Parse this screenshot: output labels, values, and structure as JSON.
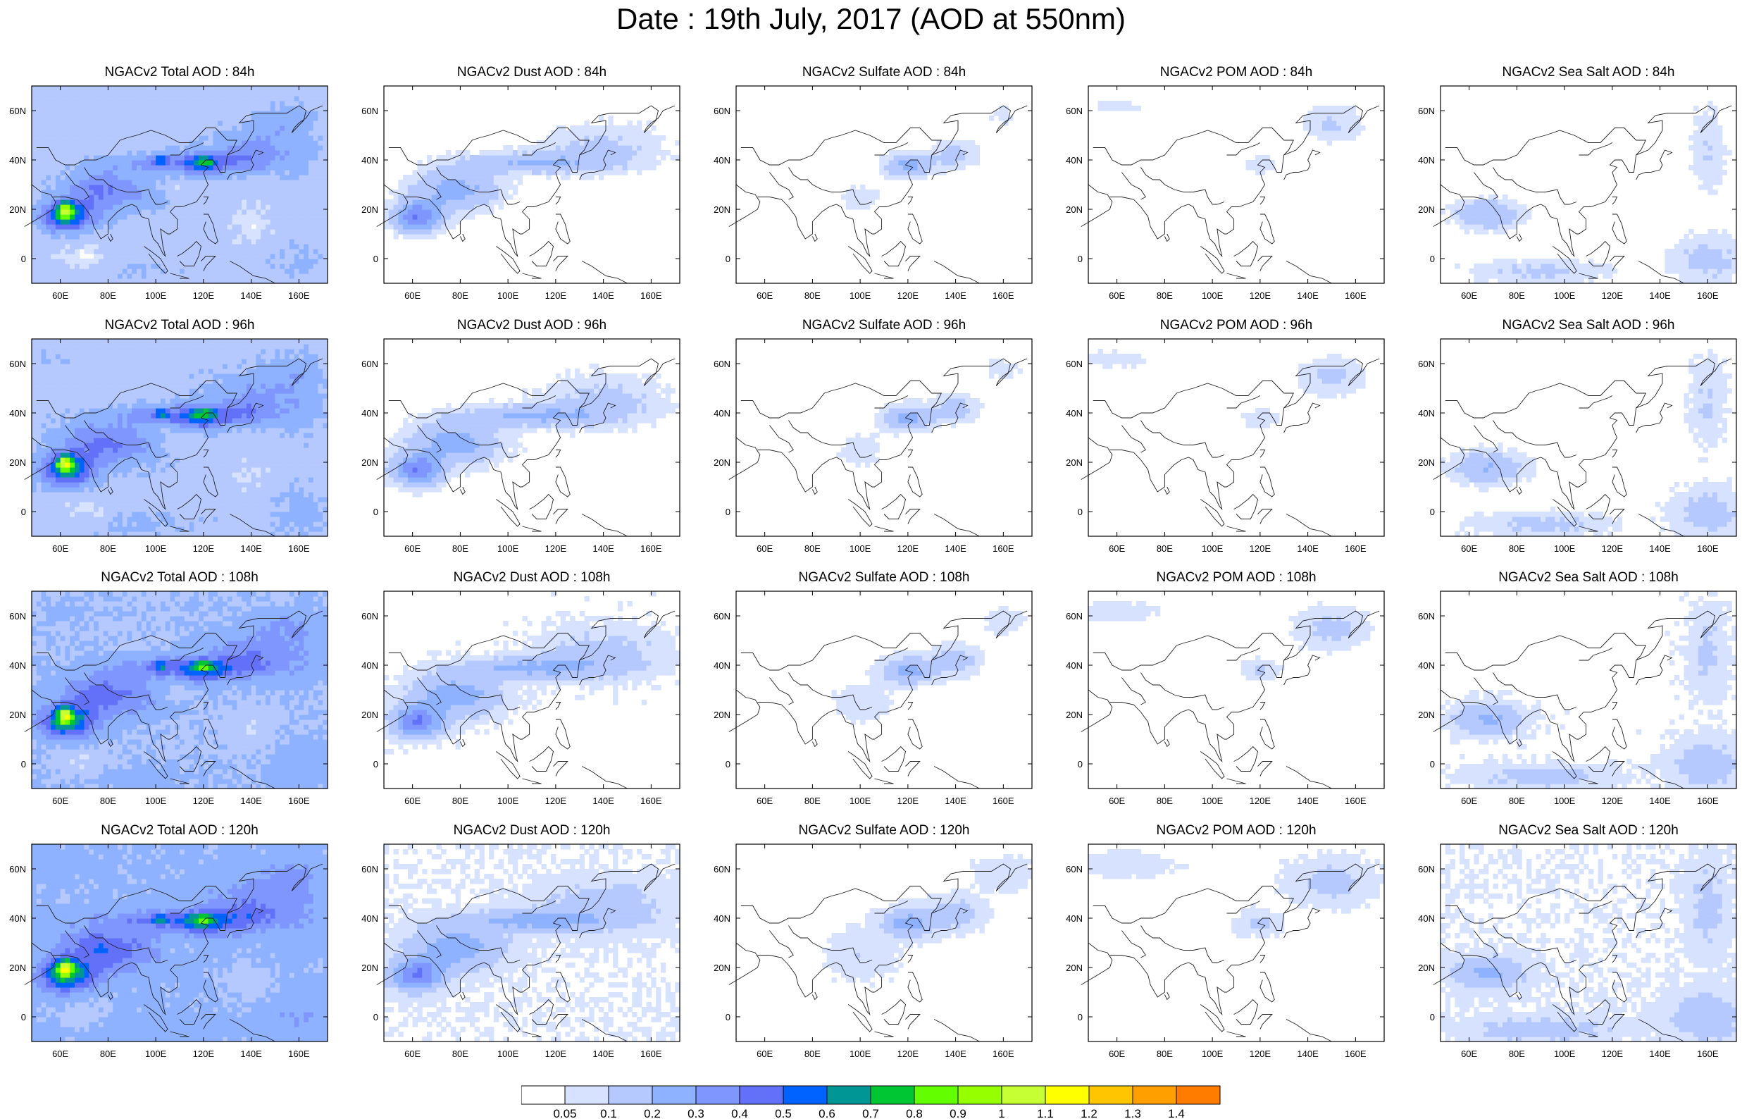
{
  "title": "Date : 19th July, 2017 (AOD at 550nm)",
  "map": {
    "lon_range": [
      48,
      172
    ],
    "lat_range": [
      -10,
      70
    ],
    "lon_ticks": [
      "60E",
      "80E",
      "100E",
      "120E",
      "140E",
      "160E"
    ],
    "lat_ticks": [
      "60N",
      "40N",
      "20N",
      "0"
    ]
  },
  "panels": [
    {
      "title": "NGACv2 Total AOD : 84h",
      "species": "total",
      "lead": "84h"
    },
    {
      "title": "NGACv2 Dust AOD : 84h",
      "species": "dust",
      "lead": "84h"
    },
    {
      "title": "NGACv2 Sulfate AOD : 84h",
      "species": "sulfate",
      "lead": "84h"
    },
    {
      "title": "NGACv2 POM AOD : 84h",
      "species": "pom",
      "lead": "84h"
    },
    {
      "title": "NGACv2 Sea Salt AOD : 84h",
      "species": "seasalt",
      "lead": "84h"
    },
    {
      "title": "NGACv2 Total AOD : 96h",
      "species": "total",
      "lead": "96h"
    },
    {
      "title": "NGACv2 Dust AOD : 96h",
      "species": "dust",
      "lead": "96h"
    },
    {
      "title": "NGACv2 Sulfate AOD : 96h",
      "species": "sulfate",
      "lead": "96h"
    },
    {
      "title": "NGACv2 POM AOD : 96h",
      "species": "pom",
      "lead": "96h"
    },
    {
      "title": "NGACv2 Sea Salt AOD : 96h",
      "species": "seasalt",
      "lead": "96h"
    },
    {
      "title": "NGACv2 Total AOD : 108h",
      "species": "total",
      "lead": "108h"
    },
    {
      "title": "NGACv2 Dust AOD : 108h",
      "species": "dust",
      "lead": "108h"
    },
    {
      "title": "NGACv2 Sulfate AOD : 108h",
      "species": "sulfate",
      "lead": "108h"
    },
    {
      "title": "NGACv2 POM AOD : 108h",
      "species": "pom",
      "lead": "108h"
    },
    {
      "title": "NGACv2 Sea Salt AOD : 108h",
      "species": "seasalt",
      "lead": "108h"
    },
    {
      "title": "NGACv2 Total AOD : 120h",
      "species": "total",
      "lead": "120h"
    },
    {
      "title": "NGACv2 Dust AOD : 120h",
      "species": "dust",
      "lead": "120h"
    },
    {
      "title": "NGACv2 Sulfate AOD : 120h",
      "species": "sulfate",
      "lead": "120h"
    },
    {
      "title": "NGACv2 POM AOD : 120h",
      "species": "pom",
      "lead": "120h"
    },
    {
      "title": "NGACv2 Sea Salt  AOD : 120h",
      "species": "seasalt",
      "lead": "120h"
    }
  ],
  "colorbar": {
    "labels": [
      "0.05",
      "0.1",
      "0.2",
      "0.3",
      "0.4",
      "0.5",
      "0.6",
      "0.7",
      "0.8",
      "0.9",
      "1",
      "1.1",
      "1.2",
      "1.3",
      "1.4"
    ],
    "colors": [
      "#ffffff",
      "#d6e2ff",
      "#b5c9ff",
      "#8eb2ff",
      "#7f96ff",
      "#6370f8",
      "#0063ff",
      "#009696",
      "#00c633",
      "#63ff00",
      "#96ff00",
      "#c6ff33",
      "#ffff00",
      "#ffc600",
      "#ffa000",
      "#ff7c00",
      "#ff1900"
    ]
  }
}
